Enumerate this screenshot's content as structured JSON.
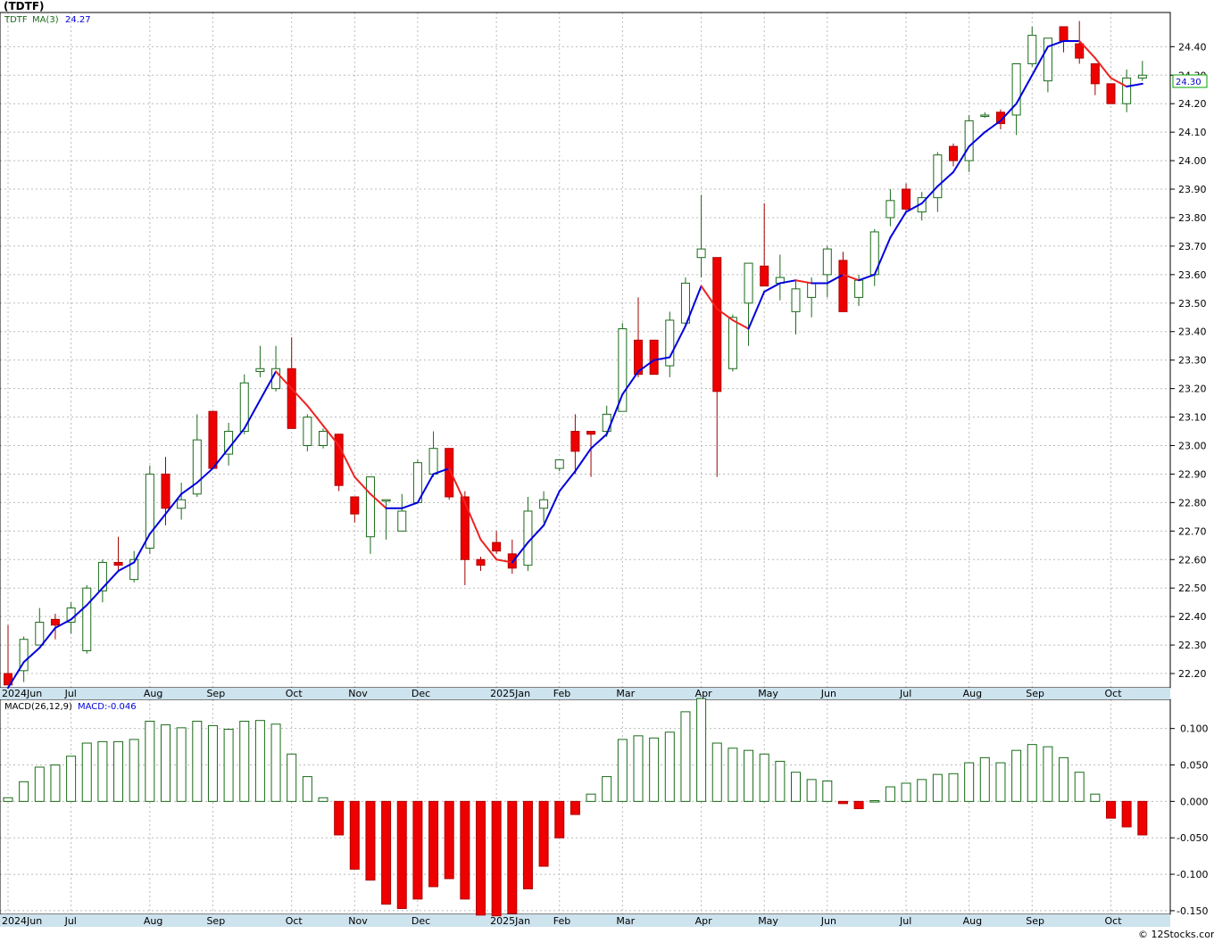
{
  "title": "(TDTF)",
  "watermark": "© 12Stocks.com",
  "colors": {
    "up": "#1a6b1a",
    "down": "#ee0000",
    "ma_up": "#0000dd",
    "ma_down": "#ee2222",
    "grid": "#bbbbbb",
    "axisband": "#cde3ee",
    "badge": "#0000cc"
  },
  "price_panel": {
    "legend_symbol": "TDTF",
    "legend_ma_label": "MA(3)",
    "legend_ma_value": "24.27",
    "last_price_badge": "24.30",
    "ylim": [
      22.15,
      24.52
    ],
    "yticks": [
      "22.20",
      "22.30",
      "22.40",
      "22.50",
      "22.60",
      "22.70",
      "22.80",
      "22.90",
      "23.00",
      "23.10",
      "23.20",
      "23.30",
      "23.40",
      "23.50",
      "23.60",
      "23.70",
      "23.80",
      "23.90",
      "24.00",
      "24.10",
      "24.20",
      "24.30",
      "24.40"
    ]
  },
  "macd_panel": {
    "legend_label": "MACD(26,12,9)",
    "legend_value": "MACD:-0.046",
    "ylim": [
      -0.155,
      0.14
    ],
    "yticks": [
      "0.100",
      "0.050",
      "0.000",
      "-0.050",
      "-0.100",
      "-0.150"
    ]
  },
  "x_axis_labels": [
    "2024Jun",
    "Jul",
    "Aug",
    "Sep",
    "Oct",
    "Nov",
    "Dec",
    "2025Jan",
    "Feb",
    "Mar",
    "Apr",
    "May",
    "Jun",
    "Jul",
    "Aug",
    "Sep",
    "Oct"
  ],
  "x_label_week_index": [
    0,
    4,
    9,
    13,
    18,
    22,
    26,
    31,
    35,
    39,
    44,
    48,
    52,
    57,
    61,
    65,
    70
  ],
  "chart_data": {
    "type": "candlestick",
    "period": "weekly",
    "series": [
      {
        "name": "TDTF",
        "ohlc": [
          [
            22.2,
            22.37,
            22.16,
            22.16
          ],
          [
            22.21,
            22.33,
            22.17,
            22.32
          ],
          [
            22.3,
            22.43,
            22.3,
            22.38
          ],
          [
            22.39,
            22.41,
            22.32,
            22.37
          ],
          [
            22.38,
            22.45,
            22.34,
            22.43
          ],
          [
            22.28,
            22.51,
            22.27,
            22.5
          ],
          [
            22.49,
            22.6,
            22.45,
            22.59
          ],
          [
            22.59,
            22.68,
            22.56,
            22.58
          ],
          [
            22.53,
            22.63,
            22.52,
            22.6
          ],
          [
            22.64,
            22.93,
            22.62,
            22.9
          ],
          [
            22.9,
            22.96,
            22.72,
            22.78
          ],
          [
            22.78,
            22.87,
            22.74,
            22.81
          ],
          [
            22.83,
            23.11,
            22.82,
            23.02
          ],
          [
            23.12,
            23.12,
            22.92,
            22.92
          ],
          [
            22.97,
            23.08,
            22.93,
            23.05
          ],
          [
            23.05,
            23.25,
            23.04,
            23.22
          ],
          [
            23.26,
            23.35,
            23.24,
            23.27
          ],
          [
            23.2,
            23.35,
            23.19,
            23.27
          ],
          [
            23.27,
            23.38,
            23.06,
            23.06
          ],
          [
            23,
            23.11,
            22.98,
            23.1
          ],
          [
            23,
            23.06,
            22.99,
            23.05
          ],
          [
            23.04,
            23.04,
            22.84,
            22.86
          ],
          [
            22.82,
            22.82,
            22.73,
            22.76
          ],
          [
            22.68,
            22.89,
            22.62,
            22.89
          ],
          [
            22.81,
            22.81,
            22.67,
            22.81
          ],
          [
            22.7,
            22.83,
            22.7,
            22.77
          ],
          [
            22.8,
            22.95,
            22.81,
            22.94
          ],
          [
            22.9,
            23.05,
            22.89,
            22.99
          ],
          [
            22.99,
            22.99,
            22.81,
            22.82
          ],
          [
            22.82,
            22.84,
            22.51,
            22.6
          ],
          [
            22.6,
            22.61,
            22.56,
            22.58
          ],
          [
            22.66,
            22.7,
            22.62,
            22.63
          ],
          [
            22.62,
            22.67,
            22.55,
            22.57
          ],
          [
            22.58,
            22.82,
            22.56,
            22.77
          ],
          [
            22.78,
            22.84,
            22.73,
            22.81
          ],
          [
            22.92,
            22.95,
            22.91,
            22.95
          ],
          [
            23.05,
            23.11,
            22.9,
            22.98
          ],
          [
            23.05,
            23.05,
            22.89,
            23.04
          ],
          [
            23.05,
            23.14,
            23.03,
            23.11
          ],
          [
            23.12,
            23.43,
            23.12,
            23.41
          ],
          [
            23.37,
            23.52,
            23.24,
            23.25
          ],
          [
            23.37,
            23.37,
            23.25,
            23.25
          ],
          [
            23.28,
            23.47,
            23.24,
            23.44
          ],
          [
            23.43,
            23.59,
            23.42,
            23.57
          ],
          [
            23.66,
            23.88,
            23.59,
            23.69
          ],
          [
            23.66,
            23.66,
            22.89,
            23.19
          ],
          [
            23.27,
            23.46,
            23.26,
            23.45
          ],
          [
            23.5,
            23.64,
            23.35,
            23.64
          ],
          [
            23.63,
            23.85,
            23.58,
            23.56
          ],
          [
            23.57,
            23.67,
            23.51,
            23.59
          ],
          [
            23.47,
            23.58,
            23.39,
            23.55
          ],
          [
            23.52,
            23.59,
            23.45,
            23.57
          ],
          [
            23.6,
            23.7,
            23.52,
            23.69
          ],
          [
            23.65,
            23.68,
            23.47,
            23.47
          ],
          [
            23.52,
            23.6,
            23.49,
            23.58
          ],
          [
            23.6,
            23.76,
            23.56,
            23.75
          ],
          [
            23.8,
            23.9,
            23.77,
            23.86
          ],
          [
            23.9,
            23.92,
            23.82,
            23.83
          ],
          [
            23.82,
            23.89,
            23.79,
            23.87
          ],
          [
            23.87,
            24.03,
            23.82,
            24.02
          ],
          [
            24.05,
            24.06,
            23.98,
            24
          ],
          [
            24,
            24.16,
            23.96,
            24.14
          ],
          [
            24.16,
            24.17,
            24.15,
            24.16
          ],
          [
            24.17,
            24.18,
            24.11,
            24.13
          ],
          [
            24.16,
            24.34,
            24.09,
            24.34
          ],
          [
            24.34,
            24.47,
            24.33,
            24.44
          ],
          [
            24.28,
            24.43,
            24.24,
            24.43
          ],
          [
            24.47,
            24.47,
            24.38,
            24.42
          ],
          [
            24.41,
            24.49,
            24.34,
            24.36
          ],
          [
            24.34,
            24.34,
            24.23,
            24.27
          ],
          [
            24.27,
            24.27,
            24.2,
            24.2
          ],
          [
            24.2,
            24.32,
            24.17,
            24.29
          ],
          [
            24.29,
            24.35,
            24.28,
            24.3
          ]
        ]
      },
      {
        "name": "MA(3)",
        "values": [
          22.15,
          22.24,
          22.29,
          22.36,
          22.39,
          22.44,
          22.5,
          22.56,
          22.59,
          22.69,
          22.76,
          22.83,
          22.87,
          22.92,
          22.99,
          23.06,
          23.16,
          23.26,
          23.2,
          23.14,
          23.07,
          23.0,
          22.89,
          22.83,
          22.78,
          22.78,
          22.8,
          22.9,
          22.92,
          22.8,
          22.67,
          22.6,
          22.59,
          22.66,
          22.72,
          22.84,
          22.91,
          22.99,
          23.04,
          23.18,
          23.26,
          23.3,
          23.31,
          23.42,
          23.56,
          23.48,
          23.44,
          23.41,
          23.54,
          23.57,
          23.58,
          23.57,
          23.57,
          23.6,
          23.58,
          23.6,
          23.73,
          23.82,
          23.85,
          23.91,
          23.96,
          24.05,
          24.1,
          24.14,
          24.2,
          24.3,
          24.4,
          24.42,
          24.42,
          24.36,
          24.29,
          24.26,
          24.27
        ]
      },
      {
        "name": "MACD(26,12,9)",
        "values": [
          0.005,
          0.027,
          0.047,
          0.05,
          0.062,
          0.08,
          0.082,
          0.082,
          0.085,
          0.11,
          0.105,
          0.101,
          0.11,
          0.104,
          0.099,
          0.11,
          0.111,
          0.106,
          0.065,
          0.034,
          0.005,
          -0.046,
          -0.093,
          -0.108,
          -0.141,
          -0.147,
          -0.134,
          -0.117,
          -0.106,
          -0.134,
          -0.156,
          -0.157,
          -0.154,
          -0.12,
          -0.089,
          -0.05,
          -0.018,
          0.01,
          0.034,
          0.085,
          0.09,
          0.087,
          0.095,
          0.123,
          0.141,
          0.08,
          0.073,
          0.07,
          0.065,
          0.055,
          0.04,
          0.03,
          0.028,
          -0.003,
          -0.01,
          0.001,
          0.02,
          0.025,
          0.03,
          0.037,
          0.038,
          0.053,
          0.06,
          0.053,
          0.07,
          0.078,
          0.075,
          0.06,
          0.04,
          0.01,
          -0.023,
          -0.035,
          -0.046
        ]
      }
    ]
  }
}
